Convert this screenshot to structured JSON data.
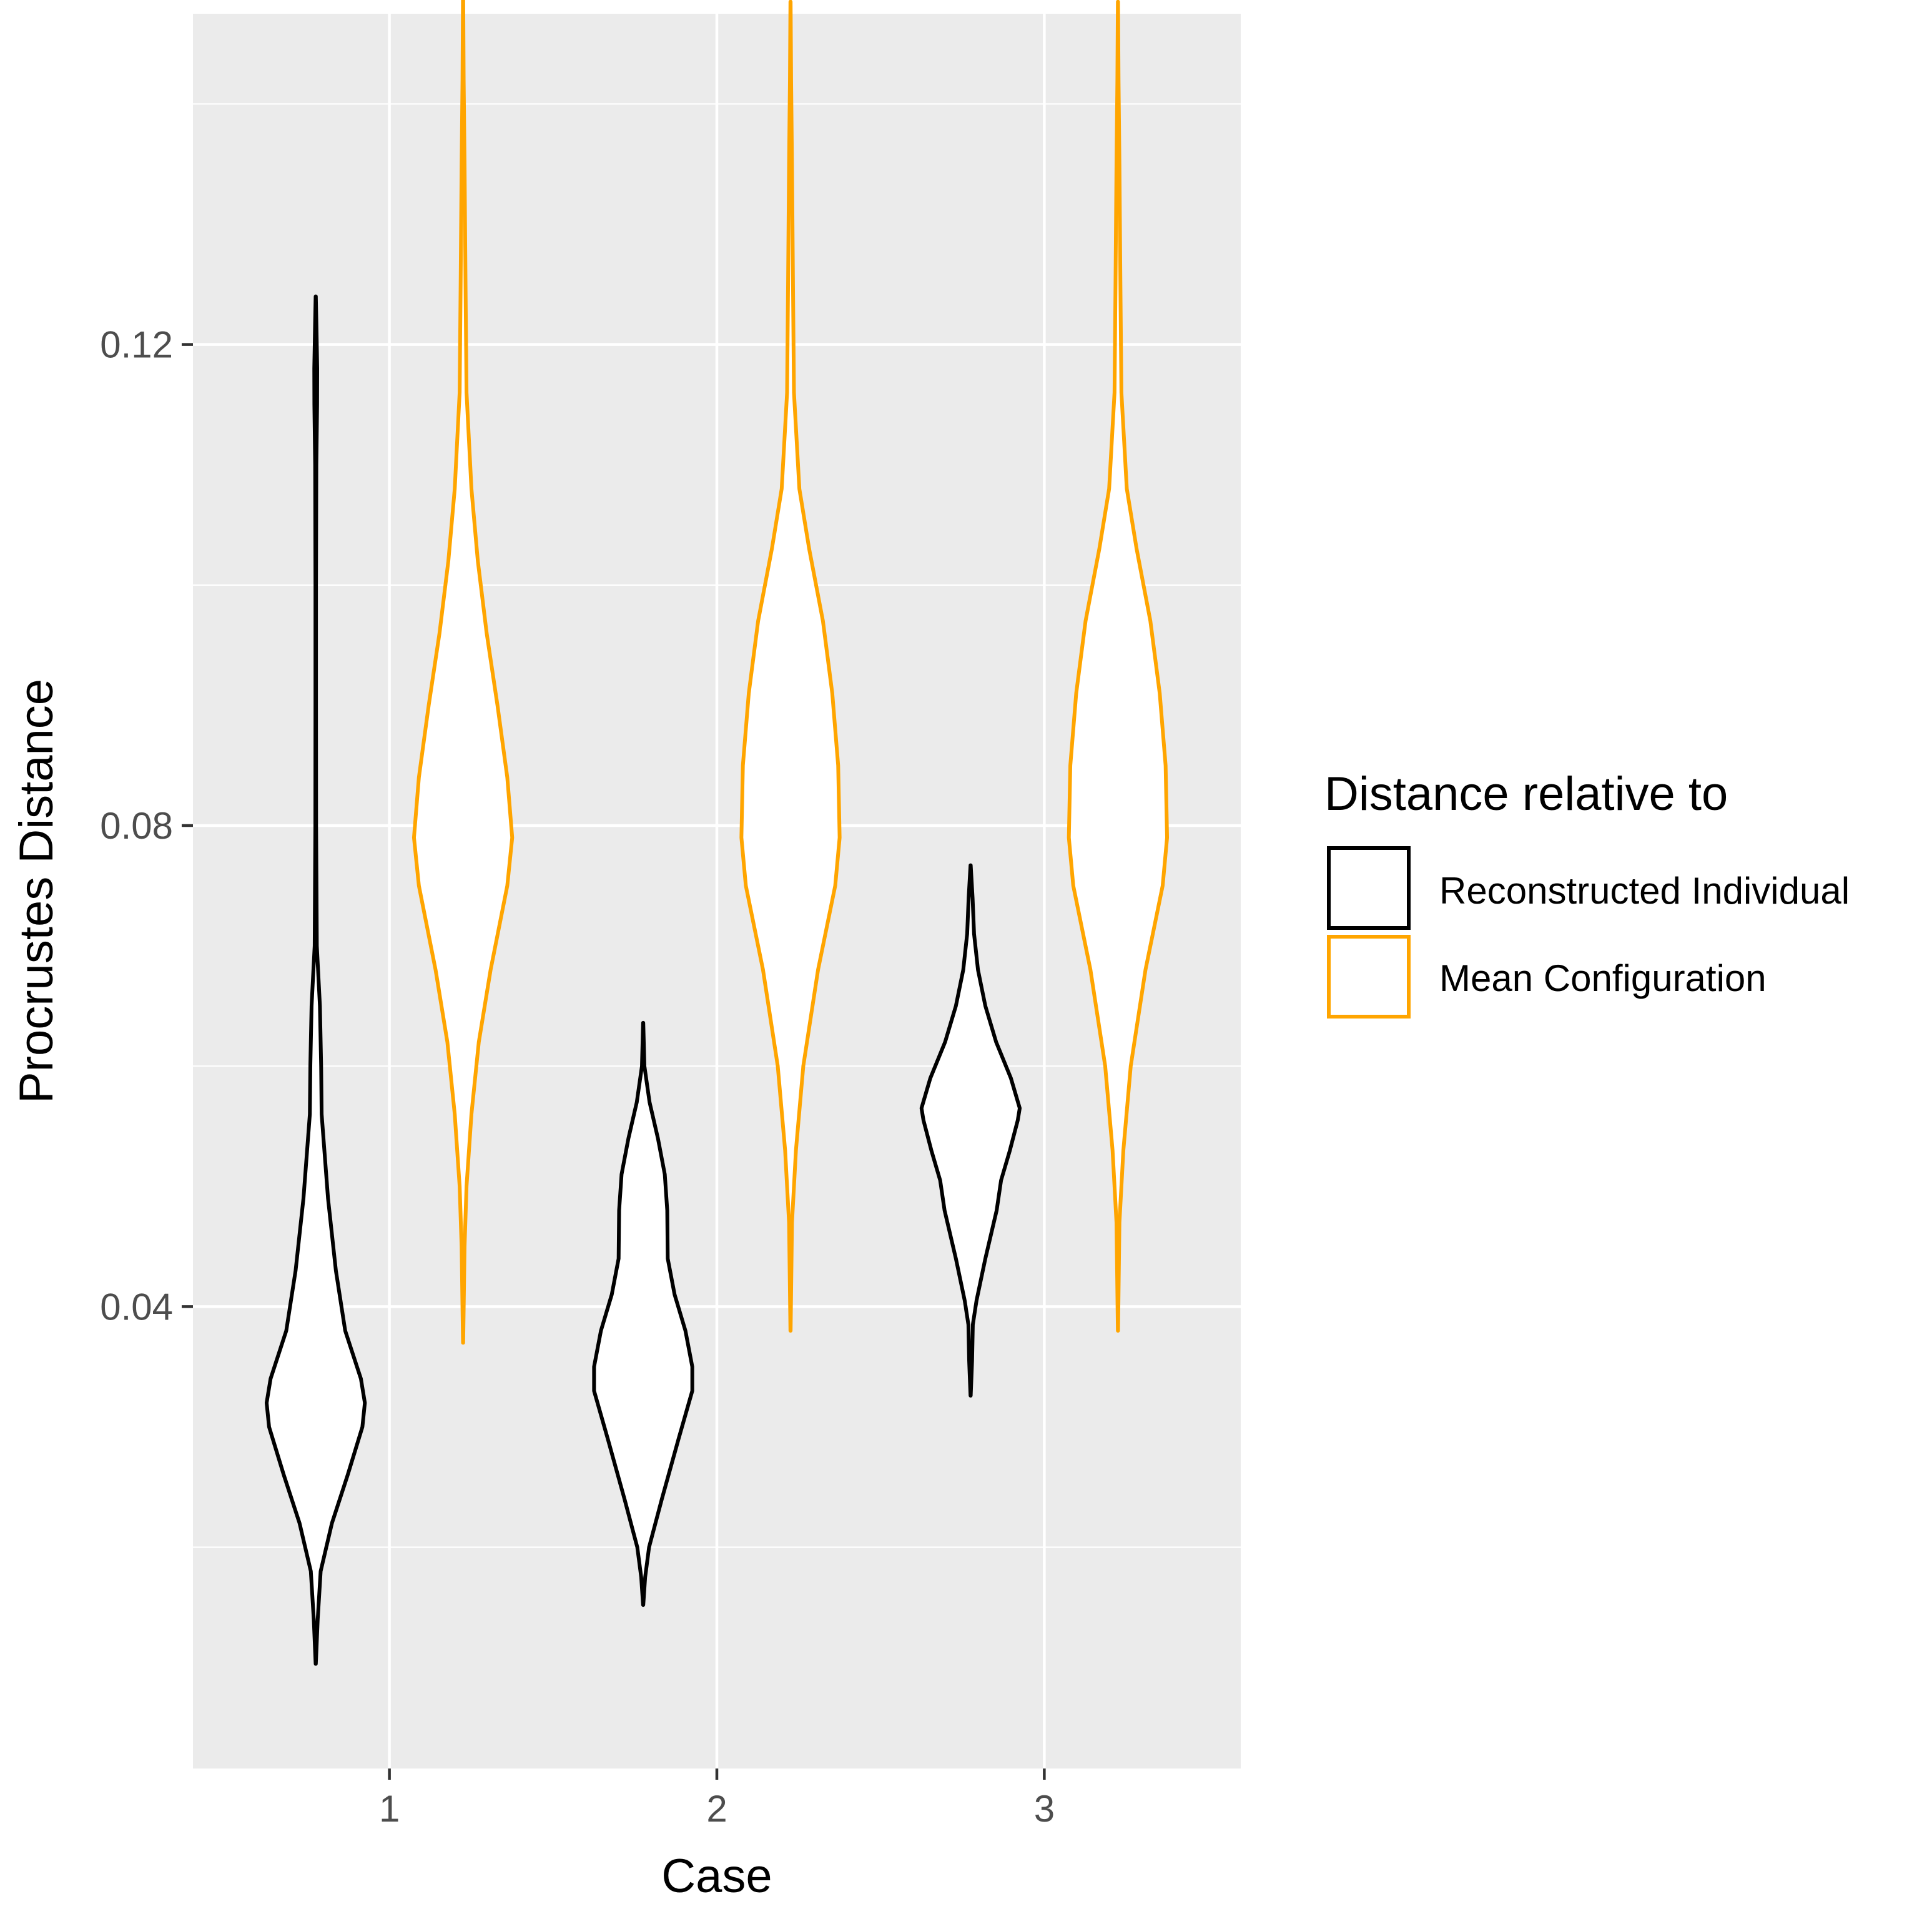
{
  "chart_data": {
    "type": "violin",
    "title": "",
    "xlabel": "Case",
    "ylabel": "Procrustes Distance",
    "categories": [
      "1",
      "2",
      "3"
    ],
    "y_ticks": [
      {
        "value": 0.04,
        "label": "0.04"
      },
      {
        "value": 0.08,
        "label": "0.08"
      },
      {
        "value": 0.12,
        "label": "0.12"
      }
    ],
    "ylim": [
      0.0016,
      0.1475
    ],
    "grid": true,
    "legend": {
      "title": "Distance relative to",
      "position": "right",
      "entries": [
        {
          "key": "reconstructed",
          "label": "Reconstructed Individual"
        },
        {
          "key": "mean",
          "label": "Mean Configuration"
        }
      ]
    },
    "colors": {
      "panel_bg": "#EBEBEB",
      "grid": "#FFFFFF",
      "reconstructed": "#000000",
      "mean": "#FFA500",
      "violin_fill": "#FFFFFF",
      "axis_text": "#4D4D4D",
      "title_text": "#000000"
    },
    "series": [
      {
        "key": "reconstructed",
        "name": "Reconstructed Individual",
        "violins": [
          {
            "case": "1",
            "min": 0.0103,
            "max": 0.124,
            "profile": [
              [
                0.0103,
                0.002
              ],
              [
                0.014,
                0.04
              ],
              [
                0.018,
                0.1
              ],
              [
                0.022,
                0.33
              ],
              [
                0.026,
                0.65
              ],
              [
                0.03,
                0.95
              ],
              [
                0.032,
                1.0
              ],
              [
                0.034,
                0.92
              ],
              [
                0.038,
                0.6
              ],
              [
                0.043,
                0.41
              ],
              [
                0.049,
                0.25
              ],
              [
                0.056,
                0.12
              ],
              [
                0.06,
                0.11
              ],
              [
                0.065,
                0.085
              ],
              [
                0.07,
                0.022
              ],
              [
                0.08,
                0.008
              ],
              [
                0.09,
                0.006
              ],
              [
                0.1,
                0.006
              ],
              [
                0.11,
                0.012
              ],
              [
                0.115,
                0.028
              ],
              [
                0.118,
                0.03
              ],
              [
                0.122,
                0.012
              ],
              [
                0.124,
                0.002
              ]
            ]
          },
          {
            "case": "2",
            "min": 0.0152,
            "max": 0.0636,
            "profile": [
              [
                0.0152,
                0.002
              ],
              [
                0.0175,
                0.04
              ],
              [
                0.02,
                0.12
              ],
              [
                0.024,
                0.38
              ],
              [
                0.029,
                0.72
              ],
              [
                0.033,
                1.0
              ],
              [
                0.035,
                1.0
              ],
              [
                0.038,
                0.86
              ],
              [
                0.041,
                0.64
              ],
              [
                0.044,
                0.5
              ],
              [
                0.048,
                0.49
              ],
              [
                0.051,
                0.44
              ],
              [
                0.054,
                0.3
              ],
              [
                0.057,
                0.13
              ],
              [
                0.06,
                0.025
              ],
              [
                0.0636,
                0.002
              ]
            ]
          },
          {
            "case": "3",
            "min": 0.0326,
            "max": 0.0767,
            "profile": [
              [
                0.0326,
                0.002
              ],
              [
                0.0355,
                0.03
              ],
              [
                0.0385,
                0.045
              ],
              [
                0.0405,
                0.12
              ],
              [
                0.044,
                0.3
              ],
              [
                0.048,
                0.53
              ],
              [
                0.0505,
                0.62
              ],
              [
                0.053,
                0.8
              ],
              [
                0.0555,
                0.96
              ],
              [
                0.0565,
                1.0
              ],
              [
                0.059,
                0.82
              ],
              [
                0.062,
                0.52
              ],
              [
                0.065,
                0.3
              ],
              [
                0.068,
                0.15
              ],
              [
                0.071,
                0.07
              ],
              [
                0.074,
                0.04
              ],
              [
                0.0767,
                0.002
              ]
            ]
          }
        ]
      },
      {
        "key": "mean",
        "name": "Mean Configuration",
        "violins": [
          {
            "case": "1",
            "min": 0.037,
            "max": 0.1495,
            "profile": [
              [
                0.037,
                0.002
              ],
              [
                0.045,
                0.03
              ],
              [
                0.05,
                0.07
              ],
              [
                0.056,
                0.17
              ],
              [
                0.062,
                0.32
              ],
              [
                0.068,
                0.56
              ],
              [
                0.075,
                0.9
              ],
              [
                0.079,
                1.0
              ],
              [
                0.084,
                0.9
              ],
              [
                0.09,
                0.7
              ],
              [
                0.096,
                0.48
              ],
              [
                0.102,
                0.3
              ],
              [
                0.108,
                0.17
              ],
              [
                0.116,
                0.07
              ],
              [
                0.125,
                0.05
              ],
              [
                0.135,
                0.03
              ],
              [
                0.142,
                0.012
              ],
              [
                0.1495,
                0.002
              ]
            ]
          },
          {
            "case": "2",
            "min": 0.038,
            "max": 0.1485,
            "profile": [
              [
                0.038,
                0.002
              ],
              [
                0.047,
                0.03
              ],
              [
                0.053,
                0.11
              ],
              [
                0.06,
                0.26
              ],
              [
                0.068,
                0.56
              ],
              [
                0.075,
                0.91
              ],
              [
                0.079,
                1.0
              ],
              [
                0.085,
                0.97
              ],
              [
                0.091,
                0.85
              ],
              [
                0.097,
                0.66
              ],
              [
                0.103,
                0.38
              ],
              [
                0.108,
                0.18
              ],
              [
                0.116,
                0.07
              ],
              [
                0.125,
                0.05
              ],
              [
                0.135,
                0.03
              ],
              [
                0.142,
                0.012
              ],
              [
                0.1485,
                0.002
              ]
            ]
          },
          {
            "case": "3",
            "min": 0.038,
            "max": 0.1485,
            "profile": [
              [
                0.038,
                0.002
              ],
              [
                0.047,
                0.03
              ],
              [
                0.053,
                0.11
              ],
              [
                0.06,
                0.26
              ],
              [
                0.068,
                0.56
              ],
              [
                0.075,
                0.91
              ],
              [
                0.079,
                1.0
              ],
              [
                0.085,
                0.97
              ],
              [
                0.091,
                0.85
              ],
              [
                0.097,
                0.66
              ],
              [
                0.103,
                0.38
              ],
              [
                0.108,
                0.18
              ],
              [
                0.116,
                0.07
              ],
              [
                0.125,
                0.05
              ],
              [
                0.135,
                0.03
              ],
              [
                0.142,
                0.012
              ],
              [
                0.1485,
                0.002
              ]
            ]
          }
        ]
      }
    ]
  }
}
